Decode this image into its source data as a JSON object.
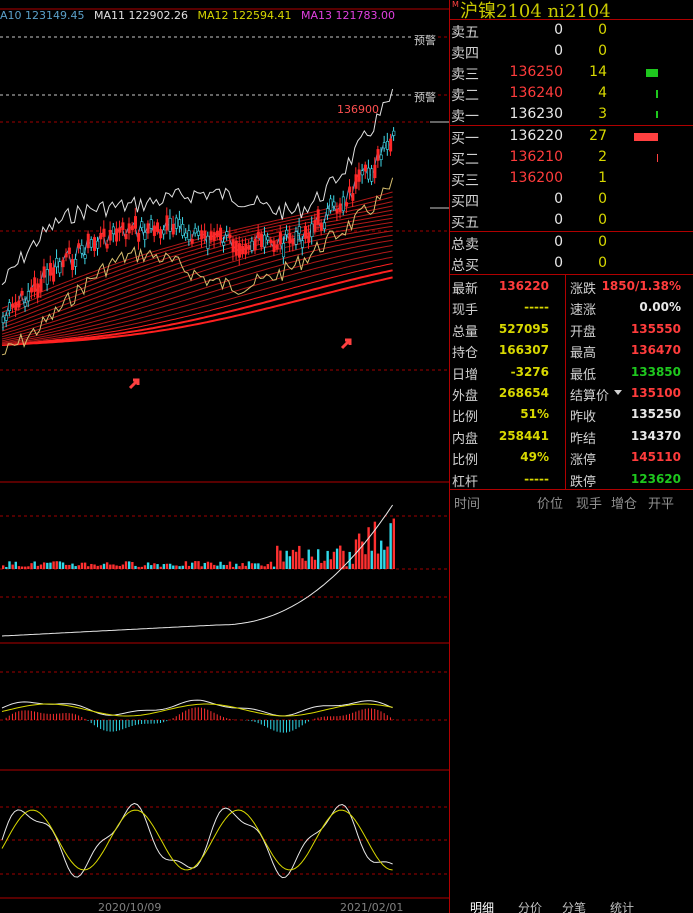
{
  "chart": {
    "ma_legend": [
      {
        "text": "A10 123149.45",
        "color": "#5aa0c8"
      },
      {
        "text": "MA11 122902.26",
        "color": "#e0e0e0"
      },
      {
        "text": "MA12 122594.41",
        "color": "#d8d800"
      },
      {
        "text": "MA13 121783.00",
        "color": "#e040e0"
      }
    ],
    "warn_label": "预警",
    "high_label": "136900",
    "dates": [
      "2020/10/09",
      "2021/02/01"
    ]
  },
  "panel": {
    "title": "沪镍2104  ni2104",
    "order_book": [
      {
        "label": "卖五",
        "price": "0",
        "volume": "0",
        "price_color": "#e8e8e8"
      },
      {
        "label": "卖四",
        "price": "0",
        "volume": "0",
        "price_color": "#e8e8e8"
      },
      {
        "label": "卖三",
        "price": "136250",
        "volume": "14",
        "price_color": "#ff3c3c"
      },
      {
        "label": "卖二",
        "price": "136240",
        "volume": "4",
        "price_color": "#ff3c3c"
      },
      {
        "label": "卖一",
        "price": "136230",
        "volume": "3",
        "price_color": "#e8e8e8"
      },
      {
        "label": "买一",
        "price": "136220",
        "volume": "27",
        "price_color": "#e8e8e8"
      },
      {
        "label": "买二",
        "price": "136210",
        "volume": "2",
        "price_color": "#ff3c3c"
      },
      {
        "label": "买三",
        "price": "136200",
        "volume": "1",
        "price_color": "#ff3c3c"
      },
      {
        "label": "买四",
        "price": "0",
        "volume": "0",
        "price_color": "#e8e8e8"
      },
      {
        "label": "买五",
        "price": "0",
        "volume": "0",
        "price_color": "#e8e8e8"
      }
    ],
    "totals": [
      {
        "label": "总卖",
        "price": "0",
        "volume": "0"
      },
      {
        "label": "总买",
        "price": "0",
        "volume": "0"
      }
    ],
    "stats": [
      {
        "l1": "最新",
        "v1": "136220",
        "c1": "#ff3c3c",
        "l2": "涨跌",
        "v2": "1850/1.38%",
        "c2": "#ff3c3c"
      },
      {
        "l1": "现手",
        "v1": "-----",
        "c1": "#d8d800",
        "l2": "速涨",
        "v2": "0.00%",
        "c2": "#e8e8e8"
      },
      {
        "l1": "总量",
        "v1": "527095",
        "c1": "#d8d800",
        "l2": "开盘",
        "v2": "135550",
        "c2": "#ff3c3c"
      },
      {
        "l1": "持仓",
        "v1": "166307",
        "c1": "#d8d800",
        "l2": "最高",
        "v2": "136470",
        "c2": "#ff3c3c"
      },
      {
        "l1": "日增",
        "v1": "-3276",
        "c1": "#d8d800",
        "l2": "最低",
        "v2": "133850",
        "c2": "#1ec81e"
      },
      {
        "l1": "外盘",
        "v1": "268654",
        "c1": "#d8d800",
        "l2": "结算价",
        "v2": "135100",
        "c2": "#ff3c3c"
      },
      {
        "l1": "比例",
        "v1": "51%",
        "c1": "#d8d800",
        "l2": "昨收",
        "v2": "135250",
        "c2": "#e8e8e8"
      },
      {
        "l1": "内盘",
        "v1": "258441",
        "c1": "#d8d800",
        "l2": "昨结",
        "v2": "134370",
        "c2": "#e8e8e8"
      },
      {
        "l1": "比例",
        "v1": "49%",
        "c1": "#d8d800",
        "l2": "涨停",
        "v2": "145110",
        "c2": "#ff3c3c"
      },
      {
        "l1": "杠杆",
        "v1": "-----",
        "c1": "#d8d800",
        "l2": "跌停",
        "v2": "123620",
        "c2": "#1ec81e"
      }
    ],
    "tick_header": [
      "时间",
      "价位",
      "现手",
      "增仓",
      "开平"
    ],
    "tabs": [
      "明细",
      "分价",
      "分笔",
      "统计"
    ]
  }
}
